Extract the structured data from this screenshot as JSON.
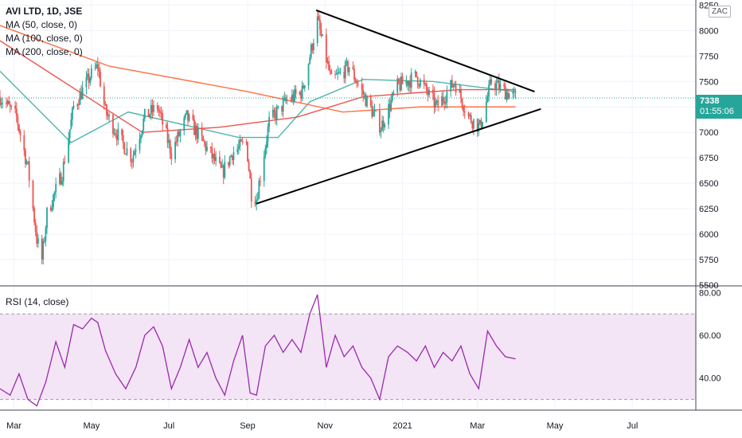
{
  "legend": {
    "symbol": "AVI LTD, 1D, JSE",
    "ma50": "MA (50, close, 0)",
    "ma100": "MA (100, close, 0)",
    "ma200": "MA (200, close, 0)"
  },
  "rsi_legend": "RSI (14, close)",
  "currency_badge": "ZAC",
  "last_price": {
    "value": "7338",
    "countdown": "01:55:06"
  },
  "colors": {
    "up": "#26a69a",
    "down": "#ef5350",
    "ma50": "#4db6ac",
    "ma100": "#ef5350",
    "ma200": "#ff7043",
    "rsi_line": "#9c27b0",
    "rsi_band": "#f3e5f5",
    "trendline": "#000000"
  },
  "chart_data": [
    {
      "type": "candlestick",
      "title": "AVI LTD, 1D, JSE",
      "ylim": [
        5500,
        8300
      ],
      "y_ticks": [
        "5500",
        "5750",
        "6000",
        "6250",
        "6500",
        "6750",
        "7000",
        "7250",
        "7500",
        "7750",
        "8000",
        "8250"
      ],
      "x_ticks": [
        "Mar",
        "May",
        "Jul",
        "Sep",
        "Nov",
        "2021",
        "Mar",
        "May",
        "Jul"
      ],
      "x_tick_dates": [
        "2020-03-01",
        "2020-05-01",
        "2020-07-01",
        "2020-09-01",
        "2020-11-01",
        "2021-01-01",
        "2021-03-01",
        "2021-05-01",
        "2021-07-01"
      ],
      "x_start": "2020-02-19",
      "x_end": "2021-08-20",
      "price_path": [
        [
          "2020-02-19",
          7350
        ],
        [
          "2020-03-03",
          7150
        ],
        [
          "2020-03-12",
          6650
        ],
        [
          "2020-03-19",
          5950
        ],
        [
          "2020-03-23",
          5750
        ],
        [
          "2020-03-27",
          6200
        ],
        [
          "2020-04-08",
          6600
        ],
        [
          "2020-04-17",
          7250
        ],
        [
          "2020-04-30",
          7550
        ],
        [
          "2020-05-06",
          7650
        ],
        [
          "2020-05-12",
          7200
        ],
        [
          "2020-05-25",
          6900
        ],
        [
          "2020-06-02",
          6750
        ],
        [
          "2020-06-12",
          7150
        ],
        [
          "2020-06-22",
          7250
        ],
        [
          "2020-07-03",
          6800
        ],
        [
          "2020-07-15",
          7150
        ],
        [
          "2020-07-28",
          6900
        ],
        [
          "2020-08-12",
          6600
        ],
        [
          "2020-08-20",
          6800
        ],
        [
          "2020-08-31",
          6900
        ],
        [
          "2020-09-04",
          6400
        ],
        [
          "2020-09-08",
          6350
        ],
        [
          "2020-09-18",
          7100
        ],
        [
          "2020-10-01",
          7300
        ],
        [
          "2020-10-14",
          7400
        ],
        [
          "2020-10-26",
          8100
        ],
        [
          "2020-11-06",
          7500
        ],
        [
          "2020-11-20",
          7650
        ],
        [
          "2020-12-02",
          7350
        ],
        [
          "2020-12-15",
          7050
        ],
        [
          "2020-12-28",
          7450
        ],
        [
          "2021-01-12",
          7550
        ],
        [
          "2021-01-28",
          7250
        ],
        [
          "2021-02-11",
          7500
        ],
        [
          "2021-02-22",
          7150
        ],
        [
          "2021-03-03",
          7050
        ],
        [
          "2021-03-12",
          7500
        ],
        [
          "2021-03-23",
          7400
        ],
        [
          "2021-03-31",
          7338
        ]
      ],
      "moving_averages": [
        {
          "name": "MA (50, close, 0)",
          "points": [
            [
              "2020-02-19",
              7600
            ],
            [
              "2020-04-15",
              6900
            ],
            [
              "2020-05-30",
              7200
            ],
            [
              "2020-08-25",
              6950
            ],
            [
              "2020-09-25",
              6950
            ],
            [
              "2020-10-20",
              7300
            ],
            [
              "2020-12-01",
              7520
            ],
            [
              "2021-01-25",
              7500
            ],
            [
              "2021-03-31",
              7400
            ]
          ]
        },
        {
          "name": "MA (100, close, 0)",
          "points": [
            [
              "2020-02-19",
              7900
            ],
            [
              "2020-06-10",
              7000
            ],
            [
              "2020-08-10",
              7050
            ],
            [
              "2020-10-10",
              7150
            ],
            [
              "2020-12-01",
              7350
            ],
            [
              "2021-02-15",
              7420
            ],
            [
              "2021-03-31",
              7420
            ]
          ]
        },
        {
          "name": "MA (200, close, 0)",
          "points": [
            [
              "2020-02-19",
              8050
            ],
            [
              "2020-05-15",
              7650
            ],
            [
              "2020-09-01",
              7400
            ],
            [
              "2020-11-15",
              7200
            ],
            [
              "2021-01-15",
              7250
            ],
            [
              "2021-03-31",
              7250
            ]
          ]
        }
      ],
      "trendlines": [
        {
          "from": [
            "2020-10-25",
            8200
          ],
          "to": [
            "2021-04-15",
            7400
          ]
        },
        {
          "from": [
            "2020-09-08",
            6300
          ],
          "to": [
            "2021-04-20",
            7230
          ]
        }
      ],
      "last_value": 7338
    },
    {
      "type": "line",
      "title": "RSI (14, close)",
      "ylim": [
        25,
        82
      ],
      "y_ticks": [
        "40.00",
        "60.00",
        "80.00"
      ],
      "bands": [
        30,
        70
      ],
      "series": [
        {
          "points": [
            [
              "2020-02-19",
              35
            ],
            [
              "2020-02-27",
              32
            ],
            [
              "2020-03-05",
              42
            ],
            [
              "2020-03-12",
              30
            ],
            [
              "2020-03-19",
              27
            ],
            [
              "2020-03-26",
              38
            ],
            [
              "2020-04-03",
              57
            ],
            [
              "2020-04-10",
              45
            ],
            [
              "2020-04-17",
              65
            ],
            [
              "2020-04-24",
              63
            ],
            [
              "2020-05-01",
              68
            ],
            [
              "2020-05-06",
              66
            ],
            [
              "2020-05-12",
              53
            ],
            [
              "2020-05-20",
              42
            ],
            [
              "2020-05-28",
              35
            ],
            [
              "2020-06-05",
              45
            ],
            [
              "2020-06-12",
              60
            ],
            [
              "2020-06-19",
              64
            ],
            [
              "2020-06-26",
              55
            ],
            [
              "2020-07-03",
              35
            ],
            [
              "2020-07-10",
              45
            ],
            [
              "2020-07-17",
              58
            ],
            [
              "2020-07-24",
              45
            ],
            [
              "2020-07-31",
              52
            ],
            [
              "2020-08-07",
              40
            ],
            [
              "2020-08-14",
              32
            ],
            [
              "2020-08-21",
              48
            ],
            [
              "2020-08-28",
              60
            ],
            [
              "2020-09-03",
              33
            ],
            [
              "2020-09-08",
              32
            ],
            [
              "2020-09-15",
              55
            ],
            [
              "2020-09-22",
              60
            ],
            [
              "2020-09-29",
              52
            ],
            [
              "2020-10-06",
              58
            ],
            [
              "2020-10-13",
              52
            ],
            [
              "2020-10-20",
              70
            ],
            [
              "2020-10-26",
              79
            ],
            [
              "2020-11-02",
              45
            ],
            [
              "2020-11-09",
              60
            ],
            [
              "2020-11-16",
              50
            ],
            [
              "2020-11-23",
              55
            ],
            [
              "2020-11-30",
              45
            ],
            [
              "2020-12-07",
              40
            ],
            [
              "2020-12-14",
              30
            ],
            [
              "2020-12-21",
              50
            ],
            [
              "2020-12-28",
              55
            ],
            [
              "2021-01-05",
              52
            ],
            [
              "2021-01-12",
              48
            ],
            [
              "2021-01-19",
              55
            ],
            [
              "2021-01-26",
              45
            ],
            [
              "2021-02-02",
              52
            ],
            [
              "2021-02-09",
              48
            ],
            [
              "2021-02-16",
              55
            ],
            [
              "2021-02-23",
              42
            ],
            [
              "2021-03-02",
              35
            ],
            [
              "2021-03-09",
              62
            ],
            [
              "2021-03-16",
              55
            ],
            [
              "2021-03-23",
              50
            ],
            [
              "2021-03-31",
              49
            ]
          ]
        }
      ]
    }
  ]
}
